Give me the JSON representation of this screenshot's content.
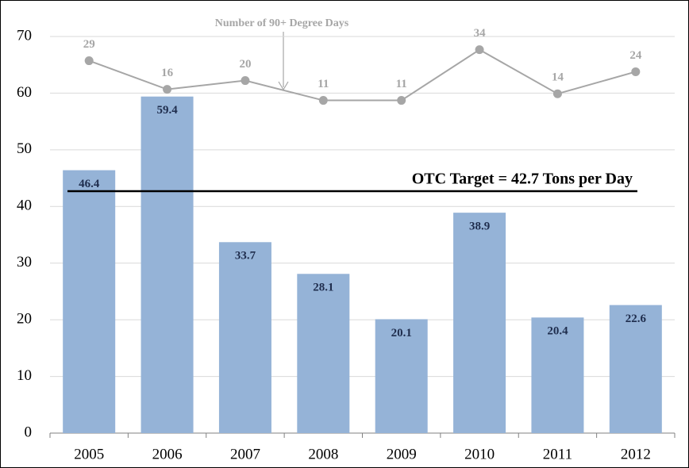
{
  "chart_data": {
    "type": "bar",
    "categories": [
      "2005",
      "2006",
      "2007",
      "2008",
      "2009",
      "2010",
      "2011",
      "2012"
    ],
    "series": [
      {
        "color": "#95b3d7",
        "values": [
          46.4,
          59.4,
          33.7,
          28.1,
          20.1,
          38.9,
          20.4,
          22.6
        ]
      },
      {
        "name": "Number of 90+ Degree Days",
        "type": "line",
        "axis": "y2",
        "color": "#a6a6a6",
        "values": [
          29,
          16,
          20,
          11,
          11,
          34,
          14,
          24
        ]
      }
    ],
    "ylim": [
      0,
      70
    ],
    "yticks": [
      0,
      10,
      20,
      30,
      40,
      50,
      60,
      70
    ],
    "y2lim": [
      -140,
      40
    ],
    "grid": true,
    "target": {
      "value": 42.7,
      "label": "OTC Target = 42.7 Tons per Day"
    }
  }
}
